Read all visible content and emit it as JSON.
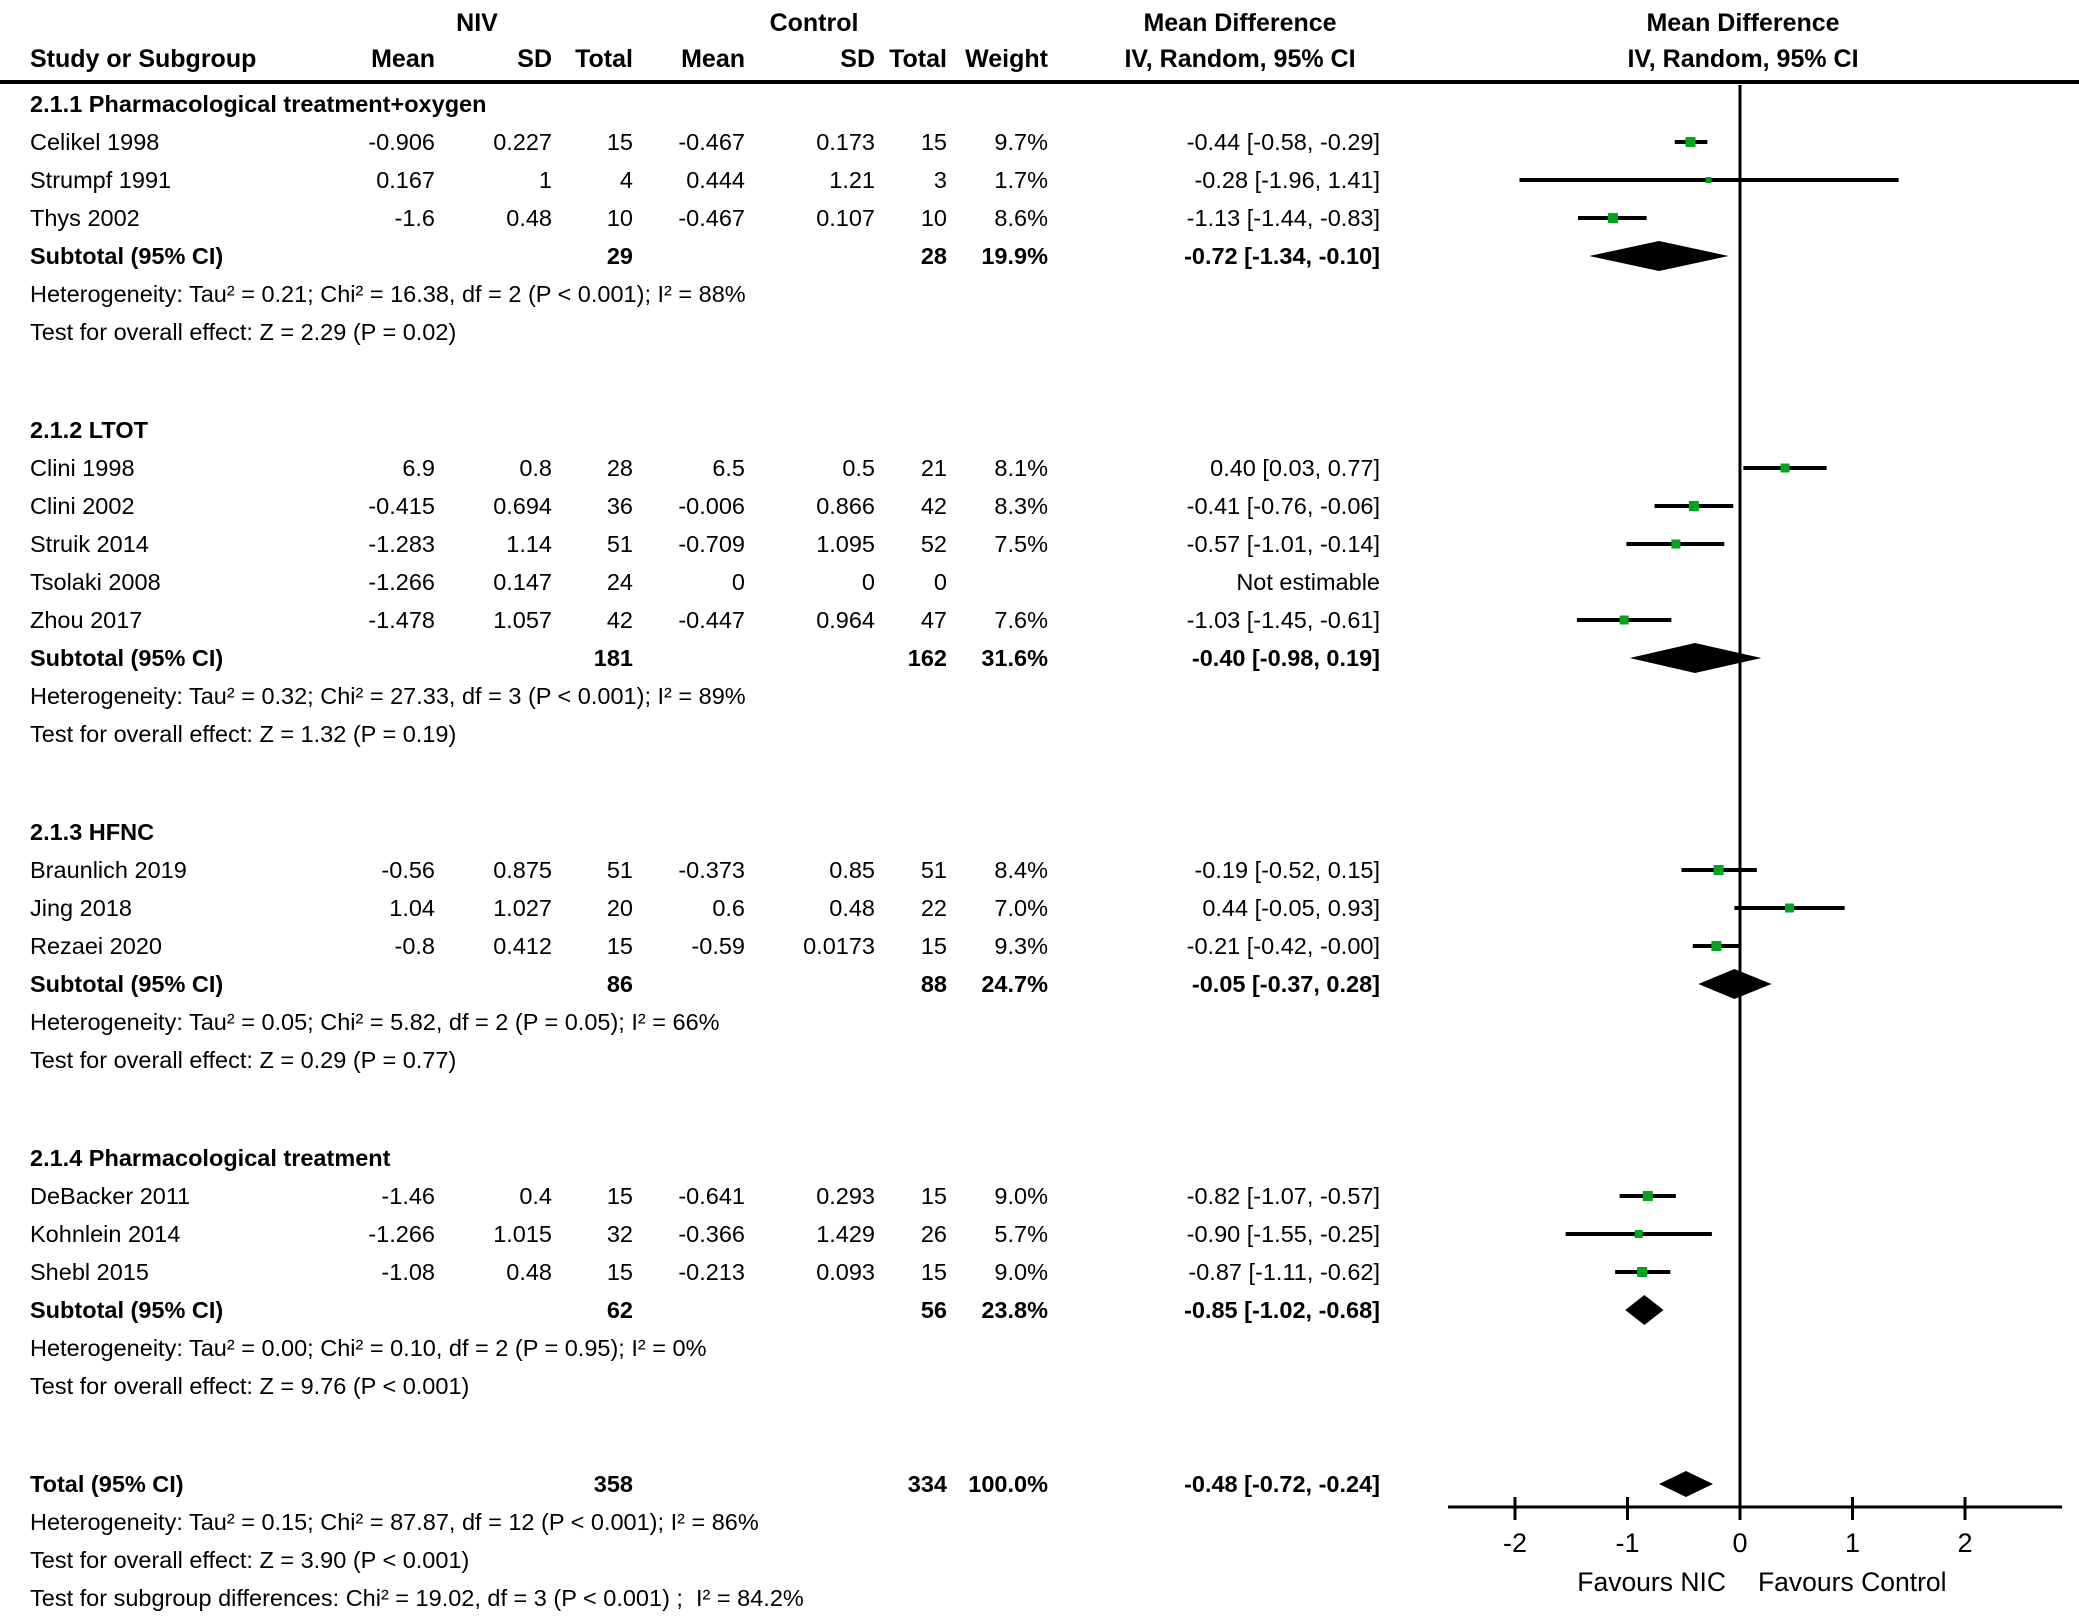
{
  "header": {
    "group_niv": "NIV",
    "group_control": "Control",
    "group_md_text": "Mean Difference",
    "group_md_plot": "Mean Difference",
    "col_study": "Study or Subgroup",
    "col_mean1": "Mean",
    "col_sd1": "SD",
    "col_total1": "Total",
    "col_mean2": "Mean",
    "col_sd2": "SD",
    "col_total2": "Total",
    "col_weight": "Weight",
    "col_ci_text": "IV, Random, 95% CI",
    "col_ci_plot": "IV, Random, 95% CI"
  },
  "colors": {
    "marker_green": "#00a41e",
    "line_black": "#000000",
    "diamond_black": "#000000",
    "text_black": "#000000"
  },
  "chart_data": {
    "type": "forest",
    "effect_measure": "Mean Difference, IV, Random, 95% CI",
    "axis": {
      "min": -2,
      "max": 2,
      "tick_values": [
        -2,
        -1,
        0,
        1,
        2
      ],
      "tick_labels": [
        "-2",
        "-1",
        "0",
        "1",
        "2"
      ],
      "favours_left": "Favours NIC",
      "favours_right": "Favours Control"
    },
    "groups": [
      {
        "name": "2.1.1 Pharmacological treatment+oxygen",
        "studies": [
          {
            "study": "Celikel 1998",
            "mean1": "-0.906",
            "sd1": "0.227",
            "total1": "15",
            "mean2": "-0.467",
            "sd2": "0.173",
            "total2": "15",
            "weight": "9.7%",
            "ci_text": "-0.44 [-0.58, -0.29]",
            "est": -0.44,
            "lo": -0.58,
            "hi": -0.29
          },
          {
            "study": "Strumpf 1991",
            "mean1": "0.167",
            "sd1": "1",
            "total1": "4",
            "mean2": "0.444",
            "sd2": "1.21",
            "total2": "3",
            "weight": "1.7%",
            "ci_text": "-0.28 [-1.96, 1.41]",
            "est": -0.28,
            "lo": -1.96,
            "hi": 1.41
          },
          {
            "study": "Thys 2002",
            "mean1": "-1.6",
            "sd1": "0.48",
            "total1": "10",
            "mean2": "-0.467",
            "sd2": "0.107",
            "total2": "10",
            "weight": "8.6%",
            "ci_text": "-1.13 [-1.44, -0.83]",
            "est": -1.13,
            "lo": -1.44,
            "hi": -0.83
          }
        ],
        "subtotal": {
          "label": "Subtotal (95% CI)",
          "total1": "29",
          "total2": "28",
          "weight": "19.9%",
          "ci_text": "-0.72 [-1.34, -0.10]",
          "est": -0.72,
          "lo": -1.34,
          "hi": -0.1
        },
        "heterogeneity": "Heterogeneity: Tau² = 0.21; Chi² = 16.38, df = 2 (P < 0.001); I² = 88%",
        "overall_effect": "Test for overall effect: Z = 2.29 (P = 0.02)"
      },
      {
        "name": "2.1.2 LTOT",
        "studies": [
          {
            "study": "Clini 1998",
            "mean1": "6.9",
            "sd1": "0.8",
            "total1": "28",
            "mean2": "6.5",
            "sd2": "0.5",
            "total2": "21",
            "weight": "8.1%",
            "ci_text": "0.40 [0.03, 0.77]",
            "est": 0.4,
            "lo": 0.03,
            "hi": 0.77
          },
          {
            "study": "Clini 2002",
            "mean1": "-0.415",
            "sd1": "0.694",
            "total1": "36",
            "mean2": "-0.006",
            "sd2": "0.866",
            "total2": "42",
            "weight": "8.3%",
            "ci_text": "-0.41 [-0.76, -0.06]",
            "est": -0.41,
            "lo": -0.76,
            "hi": -0.06
          },
          {
            "study": "Struik 2014",
            "mean1": "-1.283",
            "sd1": "1.14",
            "total1": "51",
            "mean2": "-0.709",
            "sd2": "1.095",
            "total2": "52",
            "weight": "7.5%",
            "ci_text": "-0.57 [-1.01, -0.14]",
            "est": -0.57,
            "lo": -1.01,
            "hi": -0.14
          },
          {
            "study": "Tsolaki 2008",
            "mean1": "-1.266",
            "sd1": "0.147",
            "total1": "24",
            "mean2": "0",
            "sd2": "0",
            "total2": "0",
            "weight": "",
            "ci_text": "Not estimable",
            "est": null,
            "lo": null,
            "hi": null
          },
          {
            "study": "Zhou 2017",
            "mean1": "-1.478",
            "sd1": "1.057",
            "total1": "42",
            "mean2": "-0.447",
            "sd2": "0.964",
            "total2": "47",
            "weight": "7.6%",
            "ci_text": "-1.03 [-1.45, -0.61]",
            "est": -1.03,
            "lo": -1.45,
            "hi": -0.61
          }
        ],
        "subtotal": {
          "label": "Subtotal (95% CI)",
          "total1": "181",
          "total2": "162",
          "weight": "31.6%",
          "ci_text": "-0.40 [-0.98, 0.19]",
          "est": -0.4,
          "lo": -0.98,
          "hi": 0.19
        },
        "heterogeneity": "Heterogeneity: Tau² = 0.32; Chi² = 27.33, df = 3 (P < 0.001); I² = 89%",
        "overall_effect": "Test for overall effect: Z = 1.32 (P = 0.19)"
      },
      {
        "name": "2.1.3 HFNC",
        "studies": [
          {
            "study": "Braunlich 2019",
            "mean1": "-0.56",
            "sd1": "0.875",
            "total1": "51",
            "mean2": "-0.373",
            "sd2": "0.85",
            "total2": "51",
            "weight": "8.4%",
            "ci_text": "-0.19 [-0.52, 0.15]",
            "est": -0.19,
            "lo": -0.52,
            "hi": 0.15
          },
          {
            "study": "Jing 2018",
            "mean1": "1.04",
            "sd1": "1.027",
            "total1": "20",
            "mean2": "0.6",
            "sd2": "0.48",
            "total2": "22",
            "weight": "7.0%",
            "ci_text": "0.44 [-0.05, 0.93]",
            "est": 0.44,
            "lo": -0.05,
            "hi": 0.93
          },
          {
            "study": "Rezaei 2020",
            "mean1": "-0.8",
            "sd1": "0.412",
            "total1": "15",
            "mean2": "-0.59",
            "sd2": "0.0173",
            "total2": "15",
            "weight": "9.3%",
            "ci_text": "-0.21 [-0.42, -0.00]",
            "est": -0.21,
            "lo": -0.42,
            "hi": 0.0
          }
        ],
        "subtotal": {
          "label": "Subtotal (95% CI)",
          "total1": "86",
          "total2": "88",
          "weight": "24.7%",
          "ci_text": "-0.05 [-0.37, 0.28]",
          "est": -0.05,
          "lo": -0.37,
          "hi": 0.28
        },
        "heterogeneity": "Heterogeneity: Tau² = 0.05; Chi² = 5.82, df = 2 (P = 0.05); I² = 66%",
        "overall_effect": "Test for overall effect: Z = 0.29 (P = 0.77)"
      },
      {
        "name": "2.1.4 Pharmacological treatment",
        "studies": [
          {
            "study": "DeBacker 2011",
            "mean1": "-1.46",
            "sd1": "0.4",
            "total1": "15",
            "mean2": "-0.641",
            "sd2": "0.293",
            "total2": "15",
            "weight": "9.0%",
            "ci_text": "-0.82 [-1.07, -0.57]",
            "est": -0.82,
            "lo": -1.07,
            "hi": -0.57
          },
          {
            "study": "Kohnlein 2014",
            "mean1": "-1.266",
            "sd1": "1.015",
            "total1": "32",
            "mean2": "-0.366",
            "sd2": "1.429",
            "total2": "26",
            "weight": "5.7%",
            "ci_text": "-0.90 [-1.55, -0.25]",
            "est": -0.9,
            "lo": -1.55,
            "hi": -0.25
          },
          {
            "study": "Shebl 2015",
            "mean1": "-1.08",
            "sd1": "0.48",
            "total1": "15",
            "mean2": "-0.213",
            "sd2": "0.093",
            "total2": "15",
            "weight": "9.0%",
            "ci_text": "-0.87 [-1.11, -0.62]",
            "est": -0.87,
            "lo": -1.11,
            "hi": -0.62
          }
        ],
        "subtotal": {
          "label": "Subtotal (95% CI)",
          "total1": "62",
          "total2": "56",
          "weight": "23.8%",
          "ci_text": "-0.85 [-1.02, -0.68]",
          "est": -0.85,
          "lo": -1.02,
          "hi": -0.68
        },
        "heterogeneity": "Heterogeneity: Tau² = 0.00; Chi² = 0.10, df = 2 (P = 0.95); I² = 0%",
        "overall_effect": "Test for overall effect: Z = 9.76 (P < 0.001)"
      }
    ],
    "total": {
      "label": "Total (95% CI)",
      "total1": "358",
      "total2": "334",
      "weight": "100.0%",
      "ci_text": "-0.48 [-0.72, -0.24]",
      "est": -0.48,
      "lo": -0.72,
      "hi": -0.24,
      "heterogeneity": "Heterogeneity: Tau² = 0.15; Chi² = 87.87, df = 12 (P < 0.001); I² = 86%",
      "overall_effect": "Test for overall effect: Z = 3.90 (P < 0.001)",
      "subgroup_differences": "Test for subgroup differences: Chi² = 19.02, df = 3 (P < 0.001) ;  I² = 84.2%"
    }
  }
}
